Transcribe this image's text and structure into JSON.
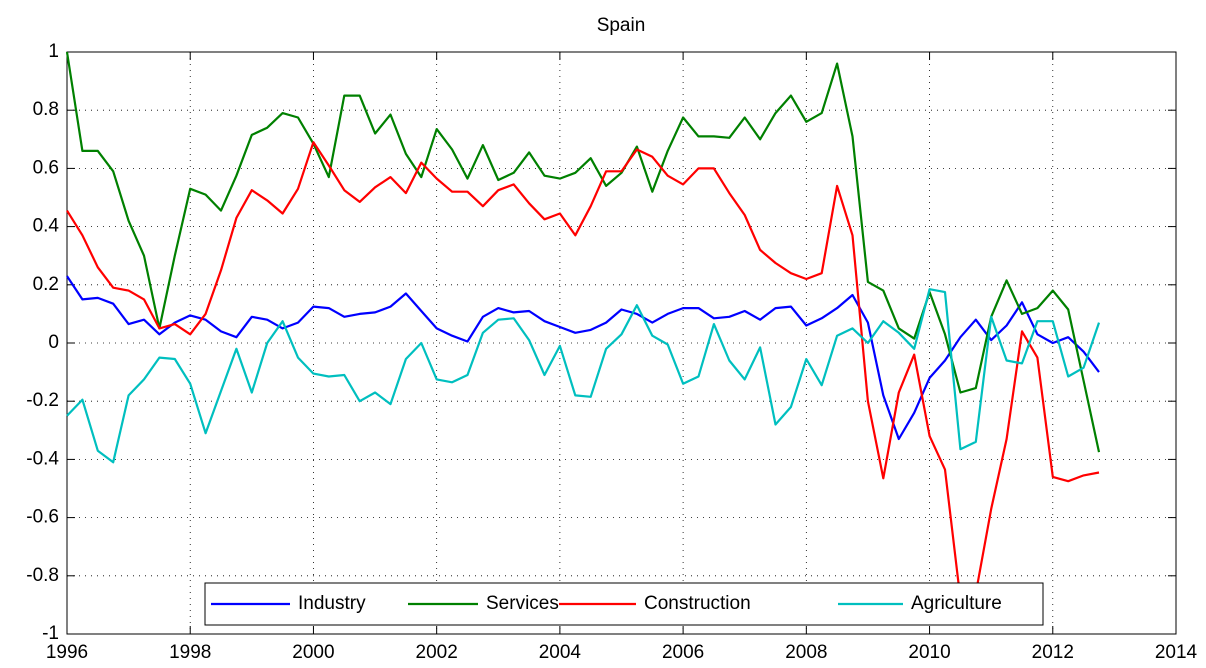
{
  "chart_data": {
    "type": "line",
    "title": "Spain",
    "x": [
      1996,
      1996.25,
      1996.5,
      1996.75,
      1997,
      1997.25,
      1997.5,
      1997.75,
      1998,
      1998.25,
      1998.5,
      1998.75,
      1999,
      1999.25,
      1999.5,
      1999.75,
      2000,
      2000.25,
      2000.5,
      2000.75,
      2001,
      2001.25,
      2001.5,
      2001.75,
      2002,
      2002.25,
      2002.5,
      2002.75,
      2003,
      2003.25,
      2003.5,
      2003.75,
      2004,
      2004.25,
      2004.5,
      2004.75,
      2005,
      2005.25,
      2005.5,
      2005.75,
      2006,
      2006.25,
      2006.5,
      2006.75,
      2007,
      2007.25,
      2007.5,
      2007.75,
      2008,
      2008.25,
      2008.5,
      2008.75,
      2009,
      2009.25,
      2009.5,
      2009.75,
      2010,
      2010.25,
      2010.5,
      2010.75,
      2011,
      2011.25,
      2011.5,
      2011.75,
      2012,
      2012.25,
      2012.5,
      2012.75
    ],
    "series": [
      {
        "name": "Industry",
        "color": "#0000ff",
        "values": [
          0.23,
          0.15,
          0.155,
          0.135,
          0.065,
          0.08,
          0.03,
          0.07,
          0.095,
          0.08,
          0.04,
          0.02,
          0.09,
          0.08,
          0.05,
          0.07,
          0.125,
          0.12,
          0.09,
          0.1,
          0.105,
          0.125,
          0.17,
          0.11,
          0.05,
          0.025,
          0.005,
          0.09,
          0.12,
          0.105,
          0.11,
          0.075,
          0.055,
          0.035,
          0.045,
          0.07,
          0.115,
          0.1,
          0.07,
          0.1,
          0.12,
          0.12,
          0.085,
          0.09,
          0.11,
          0.08,
          0.12,
          0.125,
          0.06,
          0.085,
          0.12,
          0.165,
          0.07,
          -0.18,
          -0.33,
          -0.24,
          -0.12,
          -0.06,
          0.02,
          0.08,
          0.01,
          0.06,
          0.14,
          0.03,
          0,
          0.02,
          -0.03,
          -0.1
        ]
      },
      {
        "name": "Services",
        "color": "#008000",
        "values": [
          1.0,
          0.66,
          0.66,
          0.59,
          0.42,
          0.3,
          0.05,
          0.3,
          0.53,
          0.51,
          0.455,
          0.575,
          0.715,
          0.74,
          0.79,
          0.775,
          0.685,
          0.57,
          0.85,
          0.85,
          0.72,
          0.785,
          0.65,
          0.57,
          0.735,
          0.665,
          0.565,
          0.68,
          0.56,
          0.585,
          0.655,
          0.575,
          0.565,
          0.585,
          0.635,
          0.54,
          0.585,
          0.675,
          0.52,
          0.66,
          0.775,
          0.71,
          0.71,
          0.705,
          0.775,
          0.7,
          0.79,
          0.85,
          0.76,
          0.79,
          0.96,
          0.71,
          0.21,
          0.18,
          0.05,
          0.015,
          0.175,
          0.03,
          -0.17,
          -0.155,
          0.09,
          0.215,
          0.1,
          0.12,
          0.18,
          0.115,
          -0.13,
          -0.375
        ]
      },
      {
        "name": "Construction",
        "color": "#ff0000",
        "values": [
          0.455,
          0.37,
          0.26,
          0.19,
          0.18,
          0.15,
          0.05,
          0.065,
          0.03,
          0.1,
          0.25,
          0.43,
          0.525,
          0.49,
          0.445,
          0.53,
          0.69,
          0.61,
          0.525,
          0.485,
          0.535,
          0.57,
          0.515,
          0.62,
          0.565,
          0.52,
          0.52,
          0.47,
          0.525,
          0.545,
          0.48,
          0.425,
          0.445,
          0.37,
          0.47,
          0.59,
          0.59,
          0.665,
          0.64,
          0.575,
          0.545,
          0.6,
          0.6,
          0.515,
          0.44,
          0.32,
          0.275,
          0.24,
          0.22,
          0.24,
          0.54,
          0.37,
          -0.2,
          -0.465,
          -0.17,
          -0.04,
          -0.32,
          -0.435,
          -0.88,
          -0.86,
          -0.57,
          -0.33,
          0.04,
          -0.05,
          -0.46,
          -0.475,
          -0.455,
          -0.445
        ]
      },
      {
        "name": "Agriculture",
        "color": "#00bfbf",
        "values": [
          -0.25,
          -0.195,
          -0.37,
          -0.41,
          -0.18,
          -0.125,
          -0.05,
          -0.055,
          -0.14,
          -0.31,
          -0.165,
          -0.02,
          -0.17,
          0,
          0.075,
          -0.05,
          -0.105,
          -0.115,
          -0.11,
          -0.2,
          -0.17,
          -0.21,
          -0.055,
          0,
          -0.125,
          -0.135,
          -0.11,
          0.035,
          0.08,
          0.085,
          0.01,
          -0.11,
          -0.01,
          -0.18,
          -0.185,
          -0.02,
          0.03,
          0.13,
          0.025,
          -0.005,
          -0.14,
          -0.115,
          0.065,
          -0.06,
          -0.125,
          -0.015,
          -0.28,
          -0.22,
          -0.055,
          -0.145,
          0.025,
          0.05,
          0,
          0.075,
          0.035,
          -0.02,
          0.185,
          0.175,
          -0.365,
          -0.34,
          0.09,
          -0.06,
          -0.07,
          0.075,
          0.075,
          -0.115,
          -0.085,
          0.07
        ]
      }
    ],
    "xlim": [
      1996,
      2014
    ],
    "xticks": [
      1996,
      1998,
      2000,
      2002,
      2004,
      2006,
      2008,
      2010,
      2012,
      2014
    ],
    "ylim": [
      -1,
      1
    ],
    "yticks": [
      -1,
      -0.8,
      -0.6,
      -0.4,
      -0.2,
      0,
      0.2,
      0.4,
      0.6,
      0.8,
      1
    ],
    "grid": true,
    "legend": "bottom"
  }
}
